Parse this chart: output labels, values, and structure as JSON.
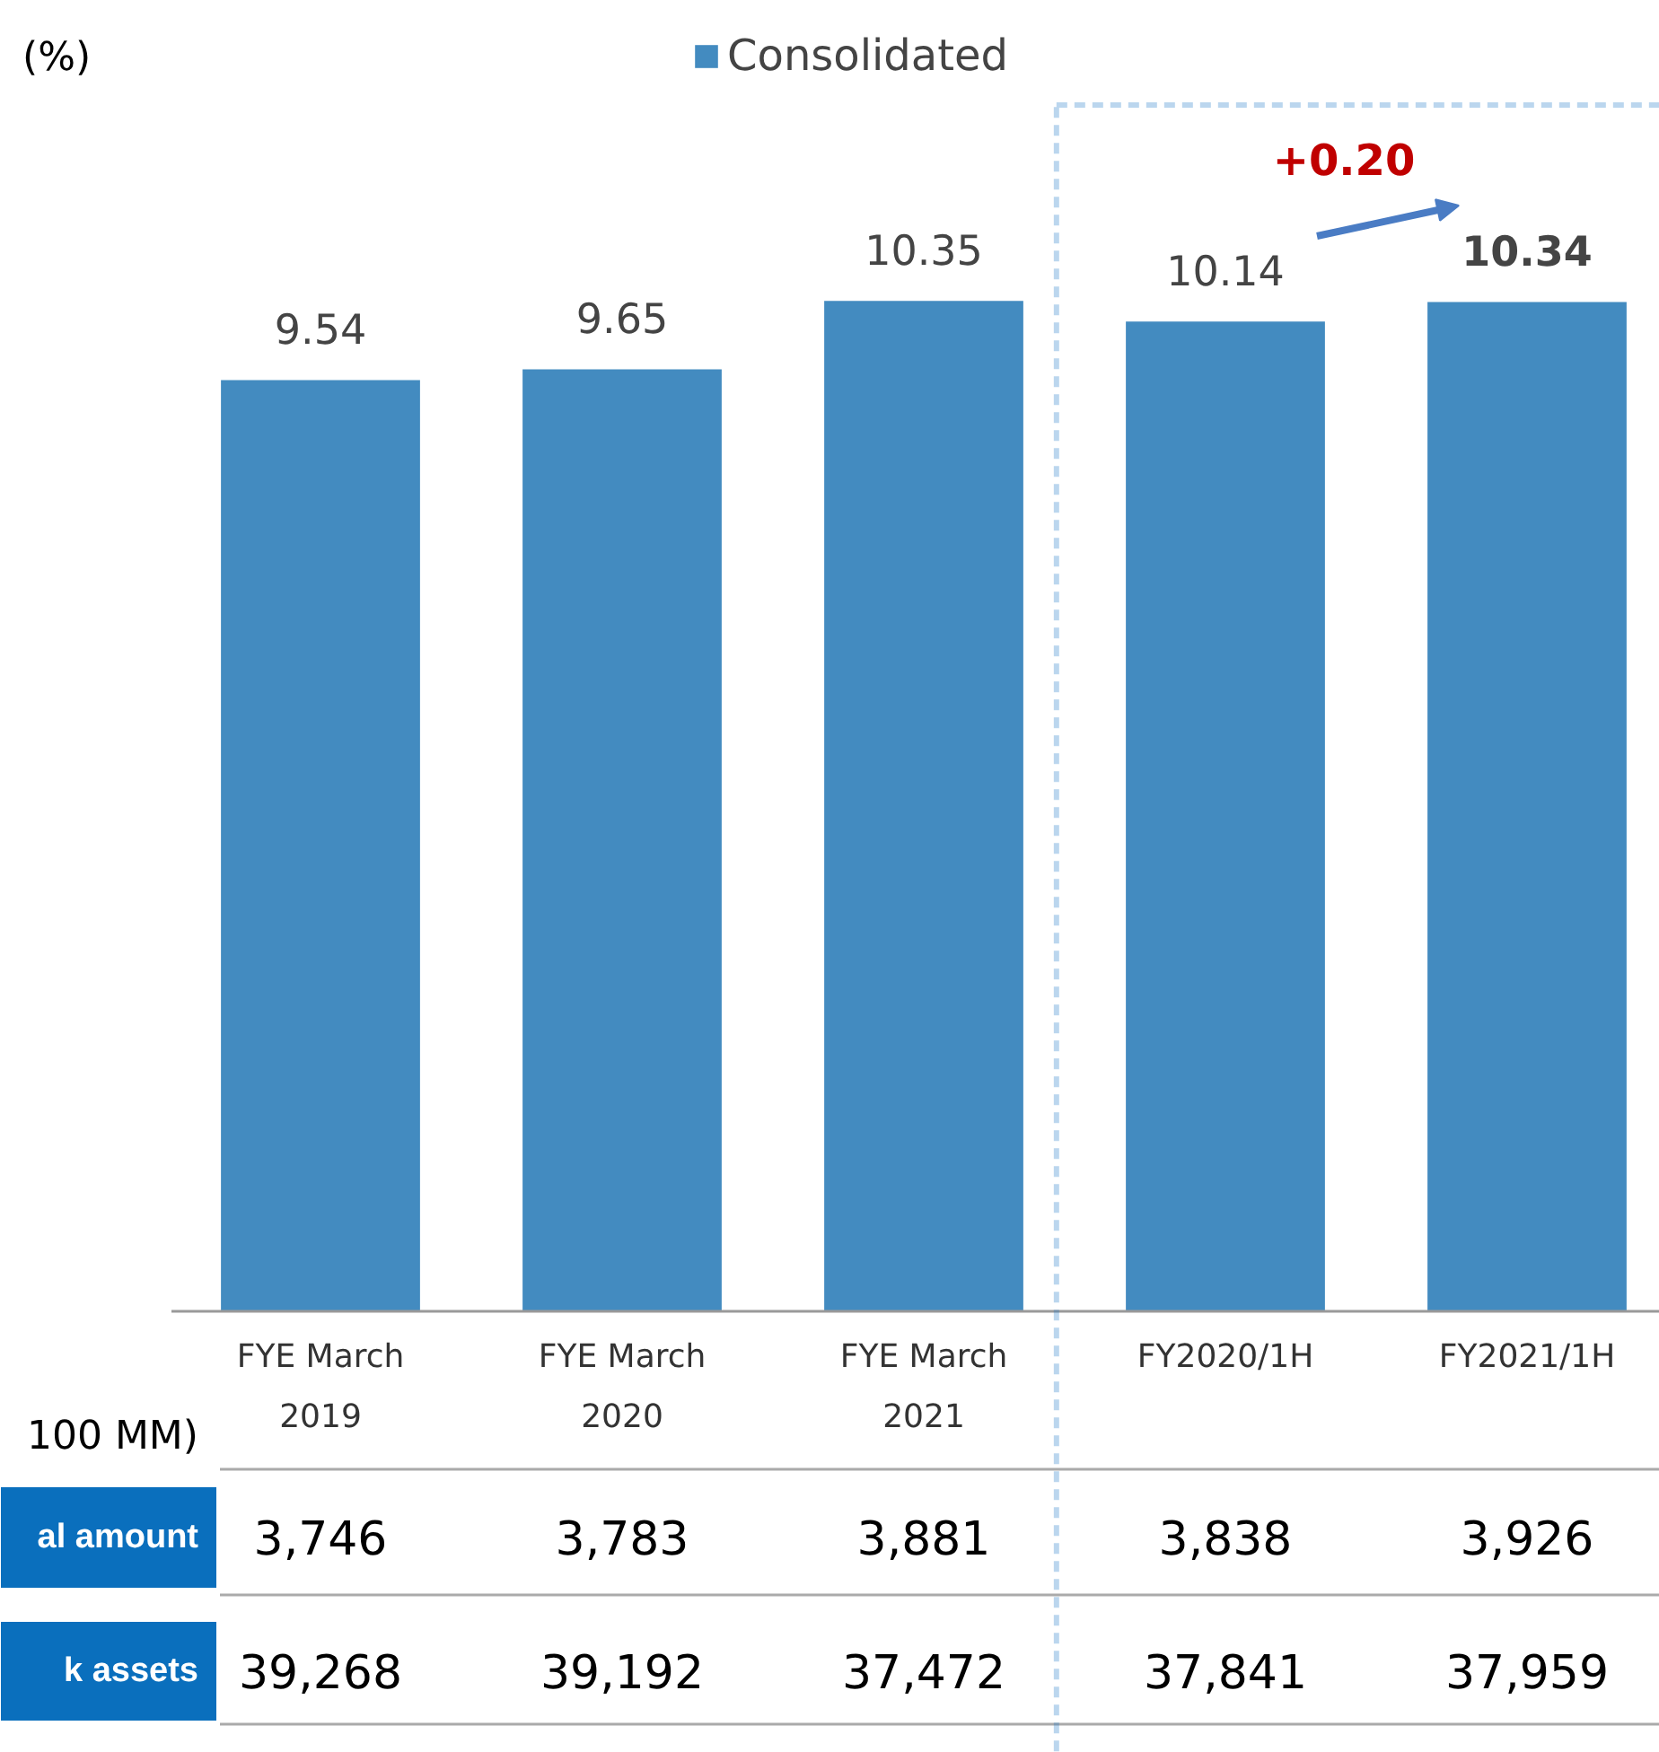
{
  "chart_data": {
    "type": "bar",
    "categories": [
      "FYE March 2019",
      "FYE March 2020",
      "FYE March 2021",
      "FY2020/1H",
      "FY2021/1H"
    ],
    "series": [
      {
        "name": "Consolidated",
        "color": "#438bc0",
        "values": [
          9.54,
          9.65,
          10.35,
          10.14,
          10.34
        ]
      }
    ],
    "data_labels": true,
    "legend": "top",
    "annotations": [
      "(%)",
      "+0.20",
      "100 MM)",
      "al amount",
      "3,746",
      "3,783",
      "3,881",
      "3,838",
      "3,926",
      "k assets",
      "39,268",
      "39,192",
      "37,472",
      "37,841",
      "37,959"
    ]
  }
}
